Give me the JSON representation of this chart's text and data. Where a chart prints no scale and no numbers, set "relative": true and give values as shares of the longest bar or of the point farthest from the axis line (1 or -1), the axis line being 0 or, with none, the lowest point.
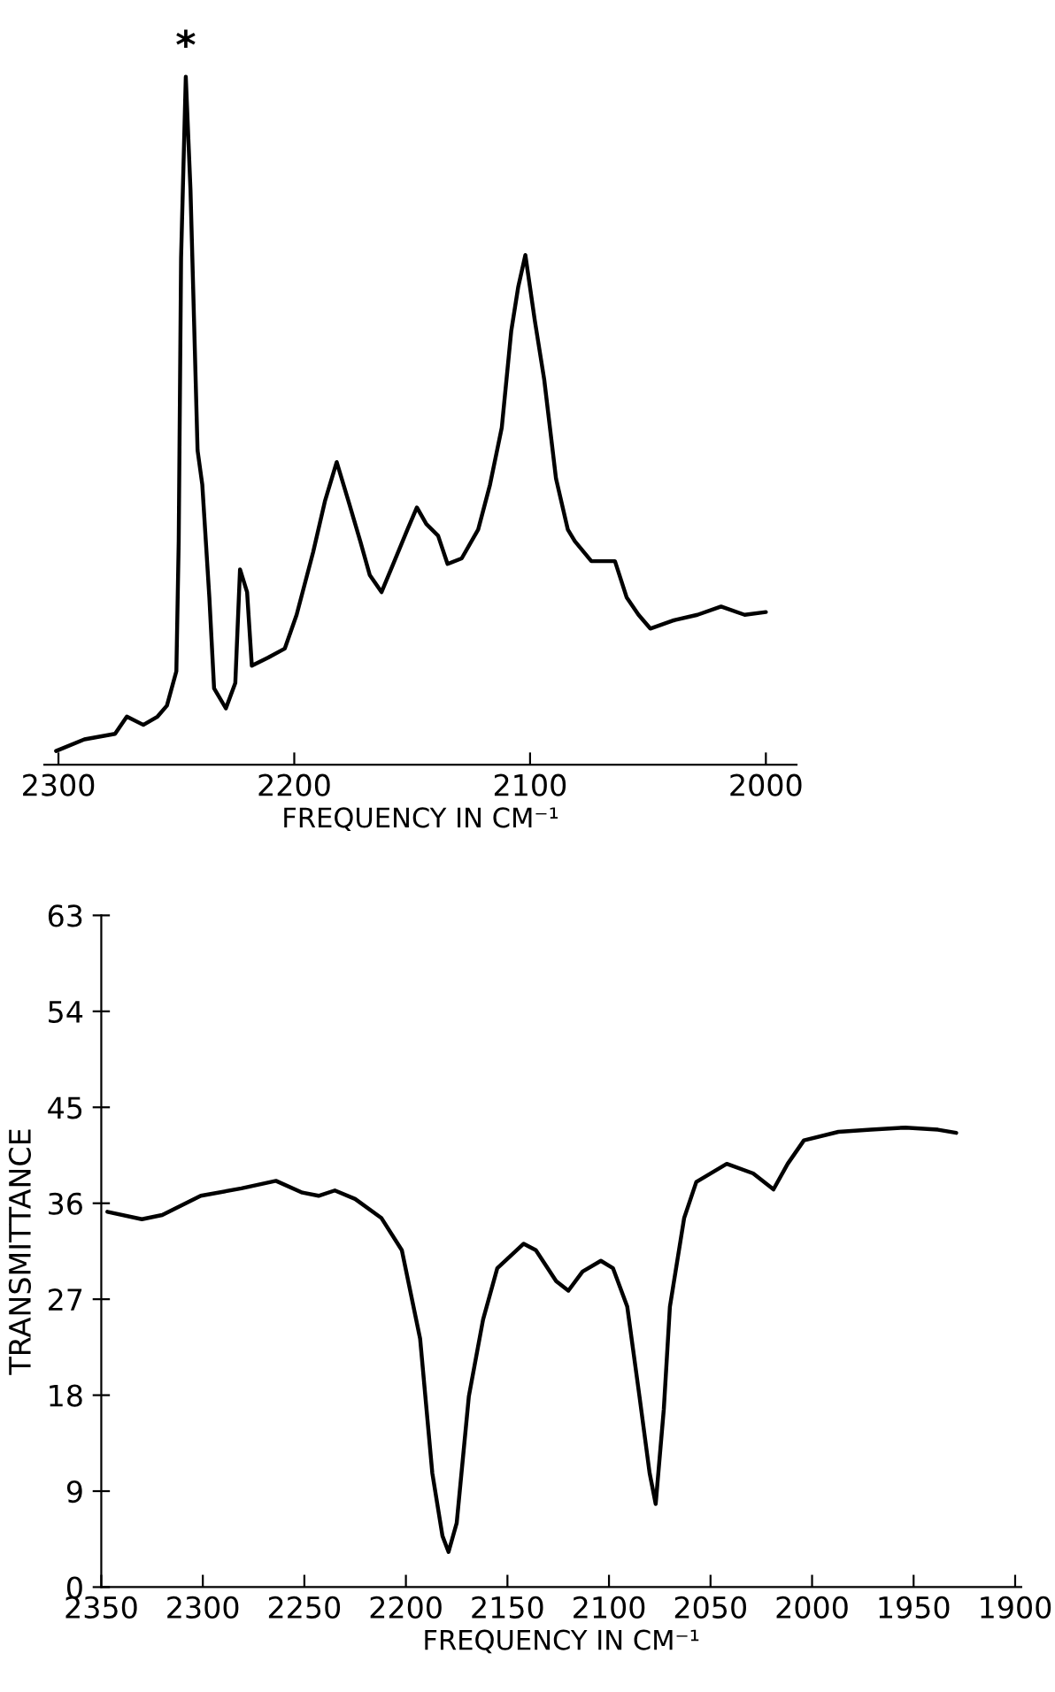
{
  "chart_data": [
    {
      "type": "line",
      "relative": true,
      "xlabel": "FREQUENCY IN CM⁻¹",
      "xlim": [
        2306,
        1987
      ],
      "xticks": [
        2300,
        2200,
        2100,
        2000
      ],
      "tick_labels": "x",
      "annotations": [
        {
          "text": "*",
          "x": 2246,
          "y": 1.0
        }
      ],
      "series": [
        {
          "color": "#000000",
          "x": [
            2301,
            2289,
            2276,
            2271,
            2264,
            2258,
            2254,
            2250,
            2249,
            2248,
            2246,
            2244,
            2241,
            2239,
            2236,
            2234,
            2229,
            2225,
            2223,
            2220,
            2218,
            2211,
            2204,
            2199,
            2192,
            2187,
            2182,
            2177,
            2172,
            2168,
            2163,
            2158,
            2152,
            2148,
            2144,
            2139,
            2135,
            2129,
            2122,
            2117,
            2112,
            2108,
            2105,
            2102,
            2098,
            2094,
            2089,
            2084,
            2081,
            2074,
            2064,
            2059,
            2054,
            2049,
            2039,
            2029,
            2019,
            2009,
            2000
          ],
          "values": [
            0.02,
            0.037,
            0.045,
            0.07,
            0.058,
            0.07,
            0.086,
            0.136,
            0.325,
            0.737,
            1.0,
            0.835,
            0.457,
            0.407,
            0.243,
            0.111,
            0.082,
            0.119,
            0.284,
            0.251,
            0.144,
            0.156,
            0.169,
            0.218,
            0.309,
            0.383,
            0.44,
            0.383,
            0.325,
            0.276,
            0.251,
            0.292,
            0.342,
            0.374,
            0.35,
            0.333,
            0.292,
            0.3,
            0.342,
            0.407,
            0.49,
            0.63,
            0.695,
            0.741,
            0.646,
            0.56,
            0.416,
            0.342,
            0.325,
            0.296,
            0.296,
            0.243,
            0.218,
            0.198,
            0.21,
            0.218,
            0.23,
            0.218,
            0.222
          ]
        }
      ]
    },
    {
      "type": "line",
      "xlabel": "FREQUENCY IN CM⁻¹",
      "ylabel": "TRANSMITTANCE",
      "xlim": [
        2350,
        1897
      ],
      "xticks": [
        2350,
        2300,
        2250,
        2200,
        2150,
        2100,
        2050,
        2000,
        1950,
        1900
      ],
      "ylim": [
        0,
        63
      ],
      "yticks": [
        0,
        9,
        18,
        27,
        36,
        45,
        54,
        63
      ],
      "series": [
        {
          "color": "#000000",
          "x": [
            2347,
            2330,
            2320,
            2301,
            2281,
            2264,
            2251,
            2243,
            2235,
            2225,
            2212,
            2202,
            2193,
            2187,
            2182,
            2179,
            2175,
            2169,
            2162,
            2155,
            2142,
            2136,
            2126,
            2120,
            2113,
            2104,
            2098,
            2091,
            2085,
            2080,
            2077,
            2073,
            2070,
            2063,
            2057,
            2042,
            2029,
            2019,
            2012,
            2004,
            1987,
            1971,
            1954,
            1938,
            1929
          ],
          "values": [
            35.2,
            34.5,
            34.9,
            36.7,
            37.4,
            38.1,
            37.0,
            36.7,
            37.2,
            36.4,
            34.6,
            31.6,
            23.3,
            10.7,
            4.8,
            3.3,
            6.0,
            17.9,
            25.1,
            29.9,
            32.2,
            31.6,
            28.7,
            27.8,
            29.6,
            30.6,
            29.9,
            26.3,
            17.9,
            10.7,
            7.8,
            16.7,
            26.3,
            34.6,
            38.0,
            39.7,
            38.8,
            37.3,
            39.7,
            41.9,
            42.7,
            42.9,
            43.1,
            42.9,
            42.6
          ]
        }
      ]
    }
  ]
}
